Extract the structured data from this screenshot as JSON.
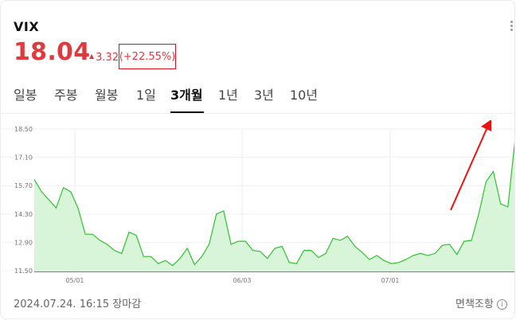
{
  "header": {
    "title": "VIX",
    "price": "18.04",
    "change": "3.32",
    "change_pct": "(+22.55%)",
    "accent_color": "#e0393e",
    "more_icon": "kebab-icon"
  },
  "tabs": [
    {
      "label": "일봉",
      "active": false
    },
    {
      "label": "주봉",
      "active": false
    },
    {
      "label": "월봉",
      "active": false
    },
    {
      "label": "1일",
      "active": false
    },
    {
      "label": "3개월",
      "active": true
    },
    {
      "label": "1년",
      "active": false
    },
    {
      "label": "3년",
      "active": false
    },
    {
      "label": "10년",
      "active": false
    }
  ],
  "chart_data": {
    "type": "area",
    "line_color": "#2ec22e",
    "fill_color": "#d9f5d9",
    "yticks": [
      "18.50",
      "17.10",
      "15.70",
      "14.30",
      "12.90",
      "11.50"
    ],
    "ylim": [
      11.5,
      18.5
    ],
    "xticks": [
      "05/01",
      "06/03",
      "07/01"
    ],
    "values": [
      16.0,
      15.4,
      15.0,
      14.6,
      15.6,
      15.4,
      14.6,
      13.3,
      13.3,
      13.0,
      12.8,
      12.5,
      12.35,
      13.4,
      13.25,
      12.2,
      12.2,
      11.85,
      12.0,
      11.75,
      12.1,
      12.6,
      11.8,
      12.2,
      12.8,
      14.3,
      14.45,
      12.8,
      12.95,
      12.95,
      12.5,
      12.45,
      12.1,
      12.6,
      12.7,
      11.9,
      11.85,
      12.5,
      12.5,
      12.15,
      12.35,
      13.1,
      13.0,
      13.2,
      12.7,
      12.4,
      12.05,
      12.25,
      12.0,
      11.85,
      11.9,
      12.05,
      12.25,
      12.35,
      12.25,
      12.35,
      12.75,
      12.8,
      12.3,
      12.95,
      13.0,
      14.3,
      15.9,
      16.4,
      14.8,
      14.65,
      18.04
    ]
  },
  "footer": {
    "date_text": "2024.07.24. 16:15 장마감",
    "disclaimer_label": "면책조항",
    "info_icon": "info-icon"
  }
}
